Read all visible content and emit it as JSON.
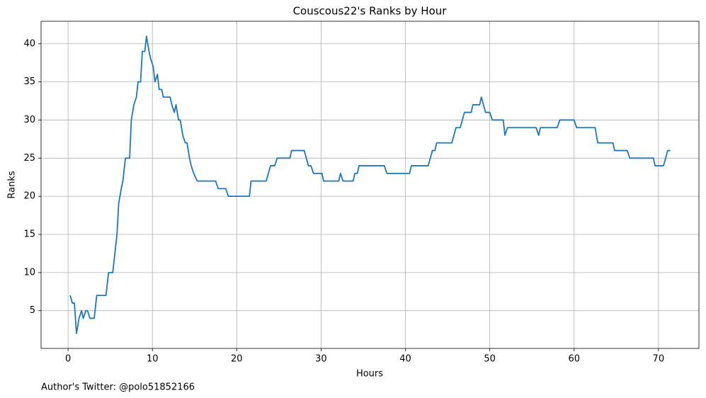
{
  "chart_data": {
    "type": "line",
    "title": "Couscous22's Ranks by Hour",
    "xlabel": "Hours",
    "ylabel": "Ranks",
    "annotation": "Author's Twitter: @polo51852166",
    "color": "#1f77b4",
    "grid": true,
    "xlim": [
      -3.2,
      74.8
    ],
    "xticks": [
      0,
      10,
      20,
      30,
      40,
      50,
      60,
      70
    ],
    "ylim": [
      0.05,
      42.95
    ],
    "yticks": [
      5,
      10,
      15,
      20,
      25,
      30,
      35,
      40
    ],
    "x": [
      0.25,
      0.5,
      0.75,
      1,
      1.3,
      1.6,
      1.8,
      2.1,
      2.3,
      2.6,
      3.1,
      3.4,
      4.5,
      4.8,
      5.3,
      5.5,
      5.8,
      6,
      6.3,
      6.5,
      6.8,
      7.3,
      7.5,
      7.8,
      8.1,
      8.3,
      8.6,
      8.8,
      9.1,
      9.3,
      9.6,
      9.8,
      10.1,
      10.3,
      10.6,
      10.8,
      11.1,
      11.3,
      12.1,
      12.3,
      12.6,
      12.8,
      13.1,
      13.3,
      13.6,
      13.9,
      14.1,
      14.4,
      14.6,
      14.9,
      15.3,
      17.5,
      17.8,
      18.7,
      19,
      21.5,
      21.7,
      23.5,
      24,
      24.5,
      24.8,
      26.3,
      26.5,
      28,
      28.5,
      28.8,
      29.1,
      30.1,
      30.3,
      32.1,
      32.3,
      32.6,
      33.8,
      34,
      34.3,
      34.5,
      37.5,
      37.8,
      40.5,
      40.7,
      42.7,
      43.2,
      43.5,
      43.7,
      45.5,
      46,
      46.5,
      47,
      47.8,
      48,
      48.8,
      49,
      49.5,
      50,
      50.3,
      51.6,
      51.8,
      52.1,
      55.5,
      55.8,
      56,
      58,
      58.3,
      60,
      60.3,
      62.5,
      62.8,
      64.6,
      64.8,
      66.3,
      66.6,
      69.4,
      69.6,
      70.6,
      71.1,
      71.4
    ],
    "values": [
      7,
      6,
      6,
      2,
      4,
      5,
      4,
      5,
      5,
      4,
      4,
      7,
      7,
      10,
      10,
      12,
      15,
      19,
      21,
      22,
      25,
      25,
      30,
      32,
      33,
      35,
      35,
      39,
      39,
      41,
      39,
      38,
      37,
      35,
      36,
      34,
      34,
      33,
      33,
      32,
      31,
      32,
      30,
      30,
      28,
      27,
      27,
      25,
      24,
      23,
      22,
      22,
      21,
      21,
      20,
      20,
      22,
      22,
      24,
      24,
      25,
      25,
      26,
      26,
      24,
      24,
      23,
      23,
      22,
      22,
      23,
      22,
      22,
      23,
      23,
      24,
      24,
      23,
      23,
      24,
      24,
      26,
      26,
      27,
      27,
      29,
      29,
      31,
      31,
      32,
      32,
      33,
      31,
      31,
      30,
      30,
      28,
      29,
      29,
      28,
      29,
      29,
      30,
      30,
      29,
      29,
      27,
      27,
      26,
      26,
      25,
      25,
      24,
      24,
      26,
      26
    ]
  }
}
